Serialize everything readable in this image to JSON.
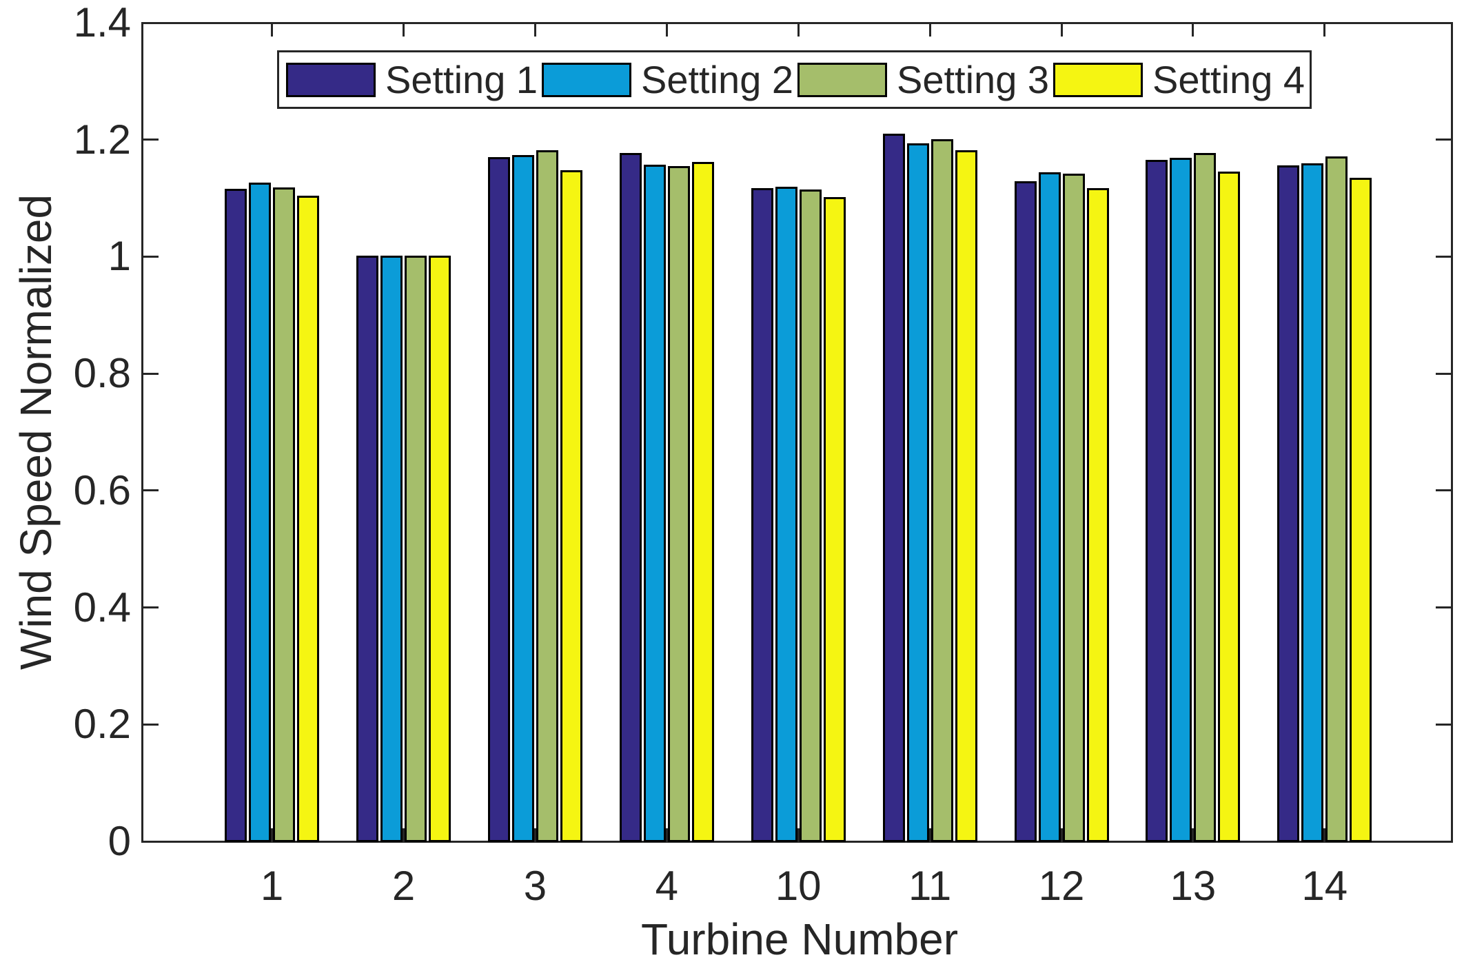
{
  "chart_data": {
    "type": "bar",
    "title": "",
    "xlabel": "Turbine Number",
    "ylabel": "Wind Speed Normalized",
    "categories": [
      "1",
      "2",
      "3",
      "4",
      "10",
      "11",
      "12",
      "13",
      "14"
    ],
    "series": [
      {
        "name": "Setting 1",
        "color": "#352A87",
        "values": [
          1.114,
          1.0,
          1.168,
          1.175,
          1.115,
          1.209,
          1.127,
          1.164,
          1.154
        ]
      },
      {
        "name": "Setting 2",
        "color": "#0B9CD8",
        "values": [
          1.125,
          1.0,
          1.172,
          1.156,
          1.118,
          1.192,
          1.142,
          1.167,
          1.158
        ]
      },
      {
        "name": "Setting 3",
        "color": "#A5BE6B",
        "values": [
          1.116,
          1.0,
          1.18,
          1.153,
          1.113,
          1.199,
          1.14,
          1.175,
          1.17
        ]
      },
      {
        "name": "Setting 4",
        "color": "#F5F512",
        "values": [
          1.102,
          1.0,
          1.146,
          1.16,
          1.1,
          1.18,
          1.115,
          1.144,
          1.133
        ]
      }
    ],
    "ylim": [
      0,
      1.4
    ],
    "yticks": [
      0,
      0.2,
      0.4,
      0.6,
      0.8,
      1,
      1.2,
      1.4
    ],
    "ytick_labels": [
      "0",
      "0.2",
      "0.4",
      "0.6",
      "0.8",
      "1",
      "1.2",
      "1.4"
    ],
    "grid": false,
    "legend_position": "top-center-horizontal",
    "bar_edge_color": "#000000",
    "axis_color": "#262626",
    "background_color": "#FFFFFF"
  }
}
